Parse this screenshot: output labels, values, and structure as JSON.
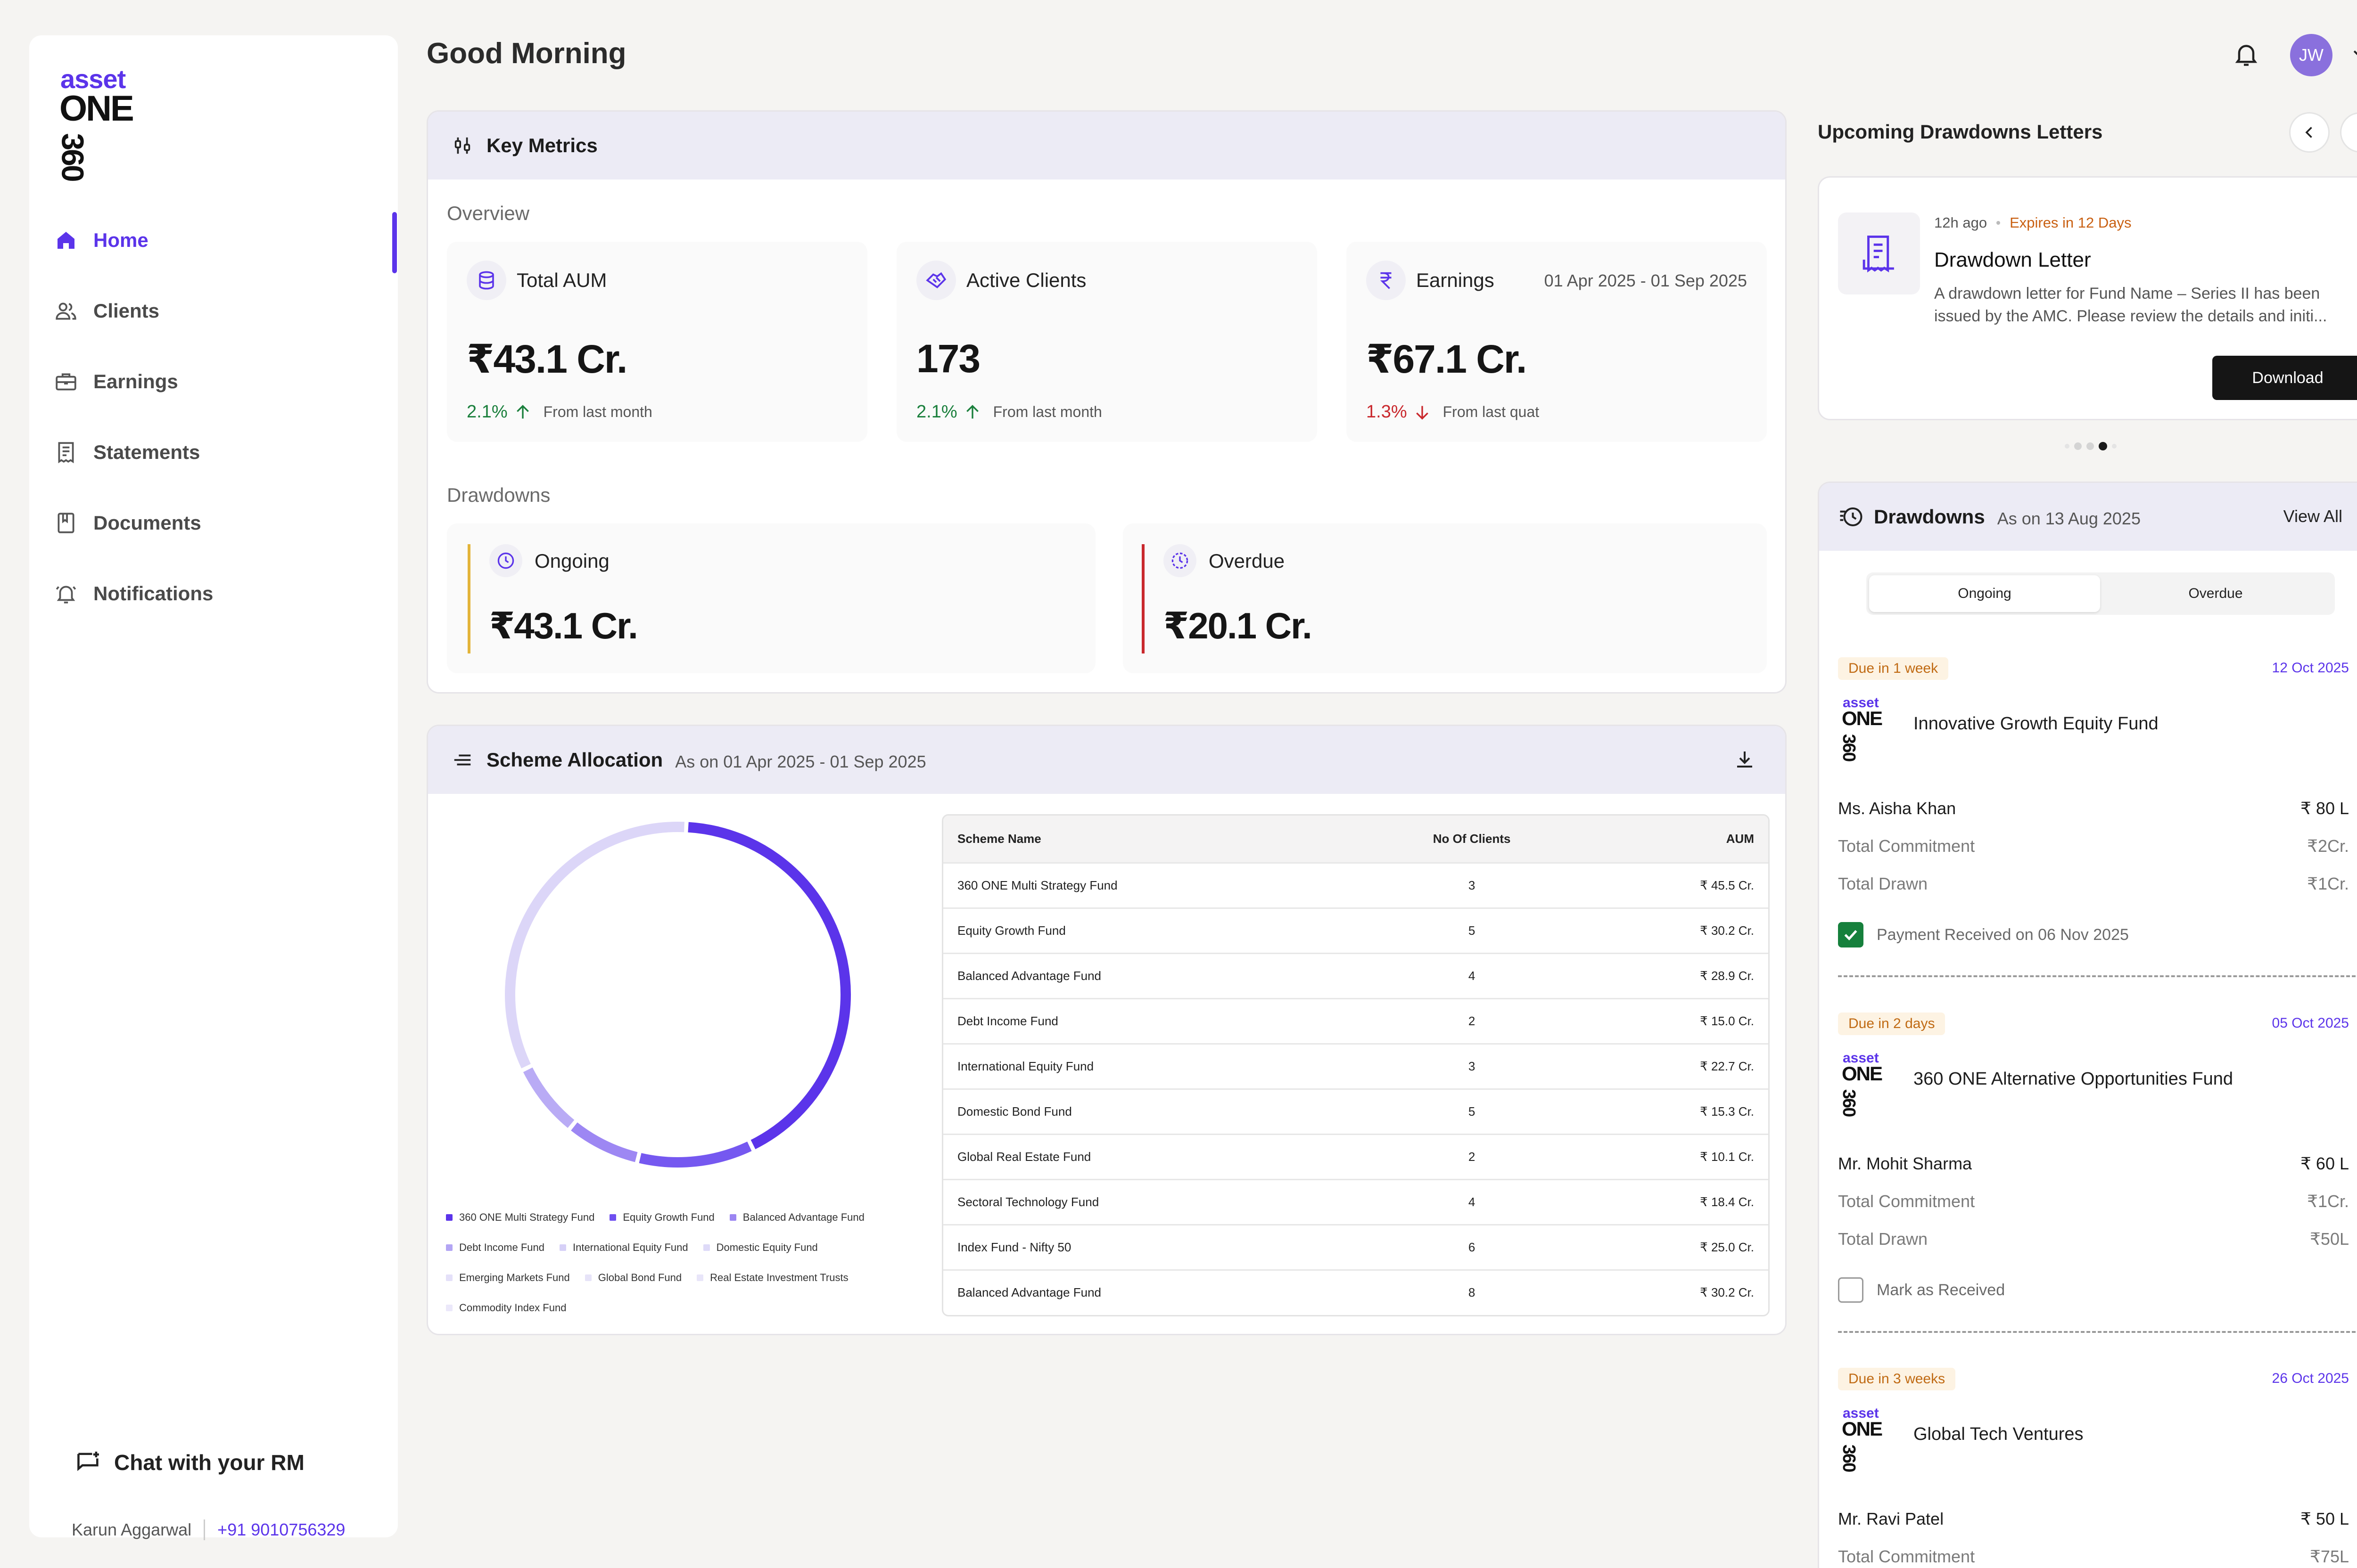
{
  "brand": {
    "top": "asset",
    "middle": "ONE",
    "bottom": "360"
  },
  "nav": [
    {
      "label": "Home",
      "icon": "home-icon",
      "active": true
    },
    {
      "label": "Clients",
      "icon": "users-icon"
    },
    {
      "label": "Earnings",
      "icon": "briefcase-icon"
    },
    {
      "label": "Statements",
      "icon": "receipt-icon"
    },
    {
      "label": "Documents",
      "icon": "book-icon"
    },
    {
      "label": "Notifications",
      "icon": "bell-alert-icon"
    }
  ],
  "chat": {
    "title": "Chat with your RM",
    "rm_name": "Karun Aggarwal",
    "rm_phone": "+91 9010756329"
  },
  "header": {
    "greeting": "Good Morning",
    "avatar_initials": "JW"
  },
  "key_metrics": {
    "title": "Key Metrics",
    "overview_label": "Overview",
    "cards": [
      {
        "title": "Total AUM",
        "value": "₹43.1 Cr.",
        "change": "2.1%",
        "direction": "up",
        "note": "From last month"
      },
      {
        "title": "Active Clients",
        "value": "173",
        "change": "2.1%",
        "direction": "up",
        "note": "From last month"
      },
      {
        "title": "Earnings",
        "range": "01 Apr 2025 - 01 Sep 2025",
        "value": "₹67.1 Cr.",
        "change": "1.3%",
        "direction": "down",
        "note": "From last quat"
      }
    ],
    "drawdowns_label": "Drawdowns",
    "drawdown_cards": [
      {
        "title": "Ongoing",
        "value": "₹43.1 Cr.",
        "accent": "#e3b43a"
      },
      {
        "title": "Overdue",
        "value": "₹20.1 Cr.",
        "accent": "#c9282d"
      }
    ]
  },
  "scheme": {
    "title": "Scheme Allocation",
    "subtitle": "As on 01 Apr 2025 - 01 Sep 2025",
    "columns": [
      "Scheme Name",
      "No Of Clients",
      "AUM"
    ],
    "rows": [
      [
        "360 ONE Multi Strategy Fund",
        "3",
        "₹ 45.5 Cr."
      ],
      [
        "Equity Growth Fund",
        "5",
        "₹ 30.2 Cr."
      ],
      [
        "Balanced Advantage Fund",
        "4",
        "₹ 28.9 Cr."
      ],
      [
        "Debt Income Fund",
        "2",
        "₹ 15.0 Cr."
      ],
      [
        "International Equity Fund",
        "3",
        "₹ 22.7 Cr."
      ],
      [
        "Domestic Bond Fund",
        "5",
        "₹ 15.3 Cr."
      ],
      [
        "Global Real Estate Fund",
        "2",
        "₹ 10.1 Cr."
      ],
      [
        "Sectoral Technology Fund",
        "4",
        "₹ 18.4 Cr."
      ],
      [
        "Index Fund - Nifty 50",
        "6",
        "₹ 25.0 Cr."
      ],
      [
        "Balanced Advantage Fund",
        "8",
        "₹ 30.2 Cr."
      ]
    ],
    "legend": [
      {
        "name": "360 ONE Multi Strategy Fund",
        "color": "#5b34ea"
      },
      {
        "name": "Equity Growth Fund",
        "color": "#6f4ff0"
      },
      {
        "name": "Balanced Advantage Fund",
        "color": "#9b85f2"
      },
      {
        "name": "Debt Income Fund",
        "color": "#b3a5f4"
      },
      {
        "name": "International Equity Fund",
        "color": "#d6d0f7"
      },
      {
        "name": "Domestic Equity Fund",
        "color": "#dedaf8"
      },
      {
        "name": "Emerging Markets Fund",
        "color": "#e4e0f9"
      },
      {
        "name": "Global Bond Fund",
        "color": "#e6e3f8"
      },
      {
        "name": "Real Estate Investment Trusts",
        "color": "#e8e5f9"
      },
      {
        "name": "Commodity Index Fund",
        "color": "#ebe8fa"
      }
    ],
    "donut_segments": [
      {
        "color": "#5b34ea",
        "share": 0.42
      },
      {
        "color": "#7558f0",
        "share": 0.11
      },
      {
        "color": "#9d87f3",
        "share": 0.07
      },
      {
        "color": "#b9abf5",
        "share": 0.07
      },
      {
        "color": "#dcd6f8",
        "share": 0.33
      }
    ]
  },
  "letters": {
    "title": "Upcoming Drawdowns Letters",
    "time": "12h ago",
    "expiry": "Expires in 12 Days",
    "heading": "Drawdown Letter",
    "body_line1": "A drawdown letter for Fund Name – Series II has been",
    "body_line2": "issued by the AMC. Please review the details and initi...",
    "download_label": "Download"
  },
  "drawdowns": {
    "title": "Drawdowns",
    "as_on": "As on 13 Aug 2025",
    "view_all": "View All",
    "tabs": [
      "Ongoing",
      "Overdue"
    ],
    "items": [
      {
        "due": "Due in 1 week",
        "date": "12 Oct 2025",
        "fund": "Innovative Growth Equity Fund",
        "client": "Ms. Aisha Khan",
        "amount": "₹ 80 L",
        "commitment_label": "Total Commitment",
        "commitment": "₹2Cr.",
        "drawn_label": "Total Drawn",
        "drawn": "₹1Cr.",
        "status": "Payment Received on 06 Nov 2025",
        "checked": true
      },
      {
        "due": "Due in 2 days",
        "date": "05 Oct 2025",
        "fund": "360 ONE Alternative Opportunities Fund",
        "client": "Mr. Mohit Sharma",
        "amount": "₹ 60 L",
        "commitment_label": "Total Commitment",
        "commitment": "₹1Cr.",
        "drawn_label": "Total Drawn",
        "drawn": "₹50L",
        "status": "Mark as Received",
        "checked": false
      },
      {
        "due": "Due in 3 weeks",
        "date": "26 Oct 2025",
        "fund": "Global Tech Ventures",
        "client": "Mr. Ravi Patel",
        "amount": "₹ 50 L",
        "commitment_label": "Total Commitment",
        "commitment": "₹75L"
      }
    ]
  },
  "colors": {
    "accent": "#5b34ea",
    "up": "#1a7f3c",
    "down": "#c9282d",
    "badge_bg": "#fdf3e3",
    "badge_text": "#c06a13"
  }
}
